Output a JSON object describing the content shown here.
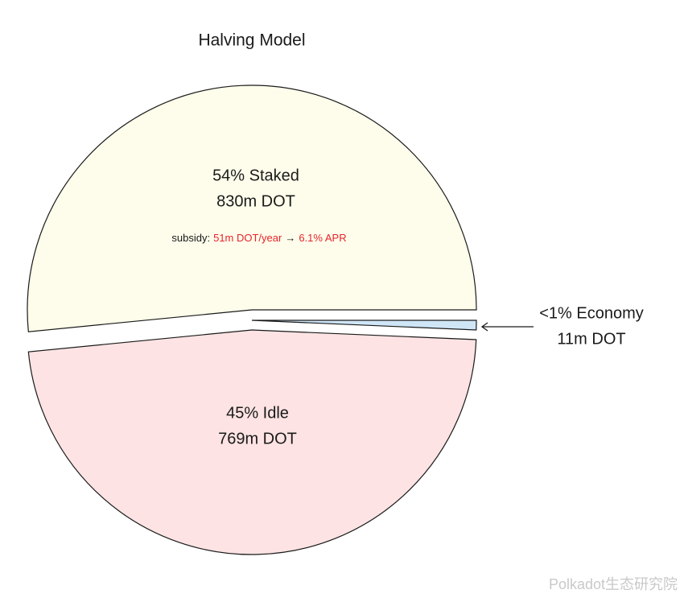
{
  "chart_data": {
    "type": "pie",
    "title": "Halving Model",
    "categories": [
      "54% Staked",
      "<1% Economy",
      "45% Idle"
    ],
    "values": [
      830,
      11,
      769
    ],
    "value_labels": [
      "830m DOT",
      "11m DOT",
      "769m DOT"
    ],
    "colors": [
      "#fefdeb",
      "#cfe6f7",
      "#fde3e3"
    ],
    "annotation": {
      "parts": [
        "subsidy:",
        "51m DOT/year",
        "→",
        "6.1% APR"
      ],
      "colors": [
        "#1a1a1a",
        "#e8242b",
        "#1a1a1a",
        "#e8242b"
      ]
    },
    "watermark": "Polkadot生态研究院"
  }
}
